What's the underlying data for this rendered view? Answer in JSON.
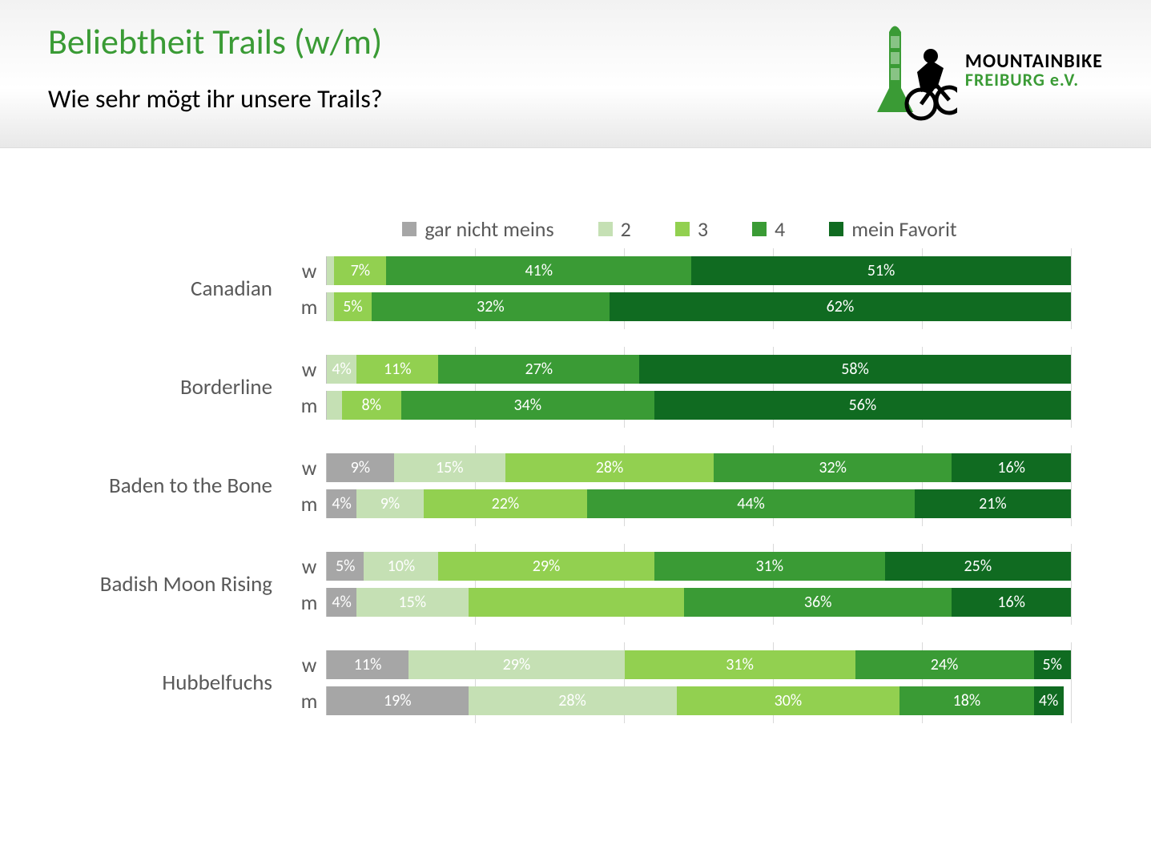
{
  "header": {
    "title": "Beliebtheit Trails (w/m)",
    "title_color": "#3a9b35",
    "subtitle": "Wie sehr mögt ihr unsere Trails?",
    "logo_line1": "MOUNTAINBIKE",
    "logo_line2": "FREIBURG e.V.",
    "logo_green": "#3a9b35"
  },
  "chart": {
    "type": "stacked_bar_horizontal",
    "legend": [
      {
        "label": "gar nicht meins",
        "color": "#a6a6a6"
      },
      {
        "label": "2",
        "color": "#c5e0b4"
      },
      {
        "label": "3",
        "color": "#92d050"
      },
      {
        "label": "4",
        "color": "#3a9b35"
      },
      {
        "label": "mein Favorit",
        "color": "#106b21"
      }
    ],
    "legend_fontsize": 26,
    "legend_text_color": "#595959",
    "bar_width_factor": 9.4,
    "label_fontsize": 27,
    "segment_fontsize": 20,
    "segment_text_color": "#ffffff",
    "grid_count": 5,
    "grid_color": "#d9d9d9",
    "axis_color": "#bfbfbf",
    "min_label_width_pct": 3.5,
    "colors": {
      "1": "#a6a6a6",
      "2": "#c5e0b4",
      "3": "#92d050",
      "4": "#3a9b35",
      "5": "#106b21"
    },
    "trails": [
      {
        "name": "Canadian",
        "rows": [
          {
            "gender": "w",
            "values": [
              0,
              1,
              7,
              41,
              51
            ],
            "show_label": [
              false,
              false,
              true,
              true,
              true
            ]
          },
          {
            "gender": "m",
            "values": [
              0,
              1,
              5,
              32,
              62
            ],
            "show_label": [
              false,
              false,
              true,
              true,
              true
            ]
          }
        ]
      },
      {
        "name": "Borderline",
        "rows": [
          {
            "gender": "w",
            "values": [
              0,
              4,
              11,
              27,
              58
            ],
            "show_label": [
              false,
              true,
              true,
              true,
              true
            ]
          },
          {
            "gender": "m",
            "values": [
              0,
              2,
              8,
              34,
              56
            ],
            "show_label": [
              false,
              false,
              true,
              true,
              true
            ]
          }
        ]
      },
      {
        "name": "Baden to the Bone",
        "rows": [
          {
            "gender": "w",
            "values": [
              9,
              15,
              28,
              32,
              16
            ],
            "show_label": [
              true,
              true,
              true,
              true,
              true
            ]
          },
          {
            "gender": "m",
            "values": [
              4,
              9,
              22,
              44,
              21
            ],
            "show_label": [
              true,
              true,
              true,
              true,
              true
            ]
          }
        ]
      },
      {
        "name": "Badish Moon Rising",
        "rows": [
          {
            "gender": "w",
            "values": [
              5,
              10,
              29,
              31,
              25
            ],
            "show_label": [
              true,
              true,
              true,
              true,
              true
            ]
          },
          {
            "gender": "m",
            "values": [
              4,
              15,
              29,
              36,
              16
            ],
            "show_label": [
              true,
              true,
              false,
              true,
              true
            ]
          }
        ]
      },
      {
        "name": "Hubbelfuchs",
        "rows": [
          {
            "gender": "w",
            "values": [
              11,
              29,
              31,
              24,
              5
            ],
            "show_label": [
              true,
              true,
              true,
              true,
              true
            ]
          },
          {
            "gender": "m",
            "values": [
              19,
              28,
              30,
              18,
              4
            ],
            "show_label": [
              true,
              true,
              true,
              true,
              true
            ]
          }
        ]
      }
    ]
  }
}
